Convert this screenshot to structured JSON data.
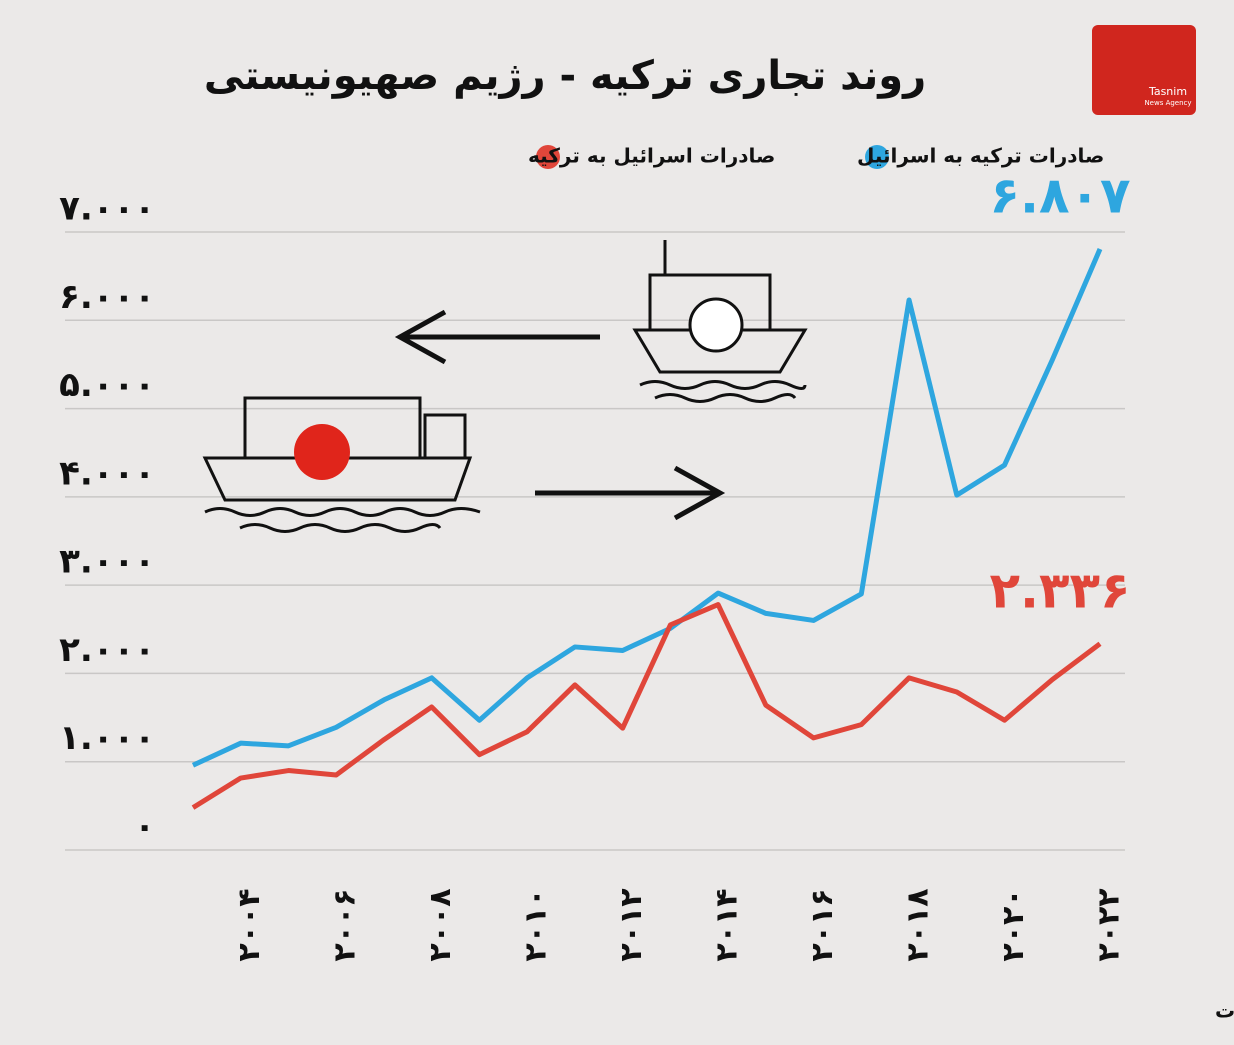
{
  "chart_data": {
    "type": "line",
    "title": "روند تجاری ترکیه - رژیم صهیونیستی",
    "source": "منبع: روزنامه یدیعوت آحارونوت",
    "logo": {
      "name": "Tasnim",
      "subtitle": "News Agency"
    },
    "x": [
      2003,
      2004,
      2005,
      2006,
      2007,
      2008,
      2009,
      2010,
      2011,
      2012,
      2013,
      2014,
      2015,
      2016,
      2017,
      2018,
      2019,
      2020,
      2021,
      2022
    ],
    "xlim": [
      2003,
      2022
    ],
    "xticks": [
      {
        "value": 2004,
        "label": "۲۰۰۴"
      },
      {
        "value": 2006,
        "label": "۲۰۰۶"
      },
      {
        "value": 2008,
        "label": "۲۰۰۸"
      },
      {
        "value": 2010,
        "label": "۲۰۱۰"
      },
      {
        "value": 2012,
        "label": "۲۰۱۲"
      },
      {
        "value": 2014,
        "label": "۲۰۱۴"
      },
      {
        "value": 2016,
        "label": "۲۰۱۶"
      },
      {
        "value": 2018,
        "label": "۲۰۱۸"
      },
      {
        "value": 2020,
        "label": "۲۰۲۰"
      },
      {
        "value": 2022,
        "label": "۲۰۲۲"
      }
    ],
    "ylim": [
      0,
      7000
    ],
    "yticks": [
      {
        "value": 0,
        "label": "۰"
      },
      {
        "value": 1000,
        "label": "۱.۰۰۰"
      },
      {
        "value": 2000,
        "label": "۲.۰۰۰"
      },
      {
        "value": 3000,
        "label": "۳.۰۰۰"
      },
      {
        "value": 4000,
        "label": "۴.۰۰۰"
      },
      {
        "value": 5000,
        "label": "۵.۰۰۰"
      },
      {
        "value": 6000,
        "label": "۶.۰۰۰"
      },
      {
        "value": 7000,
        "label": "۷.۰۰۰"
      }
    ],
    "grid": true,
    "series": [
      {
        "name": "صادرات ترکیه به اسرائیل",
        "color": "#2ea6df",
        "values": [
          960,
          1210,
          1180,
          1390,
          1700,
          1950,
          1470,
          1950,
          2300,
          2260,
          2510,
          2910,
          2680,
          2600,
          2900,
          6230,
          4020,
          4360,
          5550,
          6807
        ],
        "value_labels": [
          null,
          null,
          null,
          null,
          null,
          null,
          null,
          null,
          null,
          null,
          null,
          null,
          null,
          null,
          null,
          null,
          null,
          null,
          null,
          "۶.۸۰۷"
        ]
      },
      {
        "name": "صادرات اسرائیل به ترکیه",
        "color": "#e0463a",
        "values": [
          480,
          815,
          900,
          850,
          1250,
          1620,
          1080,
          1340,
          1870,
          1380,
          2550,
          2780,
          1640,
          1270,
          1420,
          1950,
          1790,
          1470,
          1930,
          2336
        ],
        "value_labels": [
          null,
          null,
          null,
          null,
          null,
          null,
          null,
          null,
          null,
          null,
          null,
          null,
          null,
          null,
          null,
          null,
          null,
          null,
          null,
          "۲.۳۳۶"
        ]
      }
    ]
  }
}
